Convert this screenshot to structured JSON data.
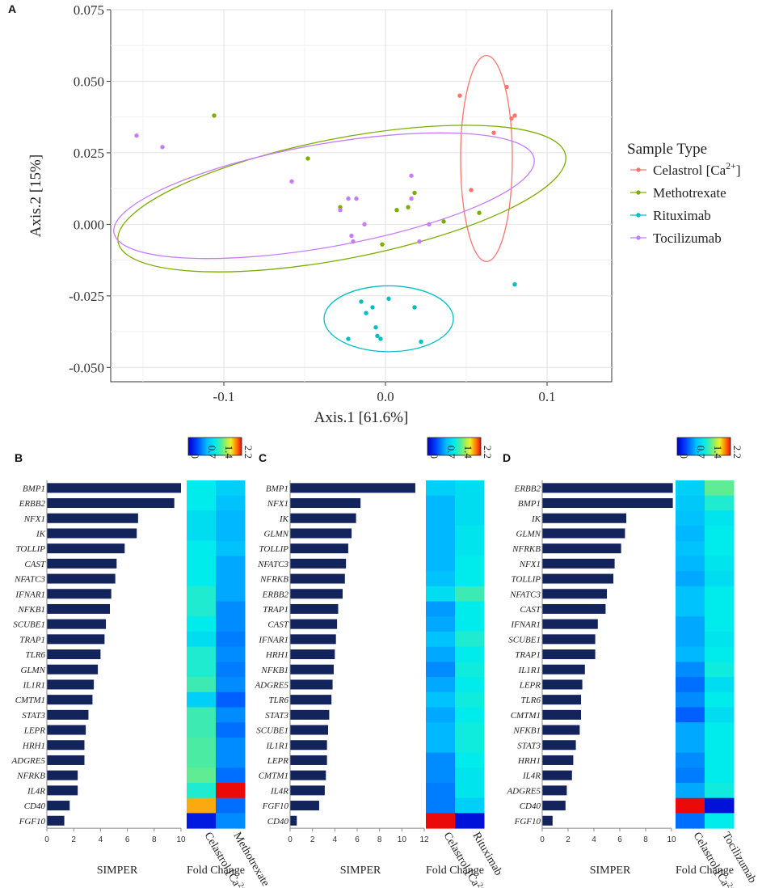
{
  "chart_data": [
    {
      "panel": "A",
      "type": "scatter",
      "xlabel": "Axis.1 [61.6%]",
      "ylabel": "Axis.2 [15%]",
      "xlim": [
        -0.17,
        0.14
      ],
      "ylim": [
        -0.055,
        0.075
      ],
      "xticks": [
        -0.1,
        0.0,
        0.1
      ],
      "xtick_labels": [
        "-0.1",
        "0.0",
        "0.1"
      ],
      "yticks": [
        0.075,
        0.05,
        0.025,
        0.0,
        -0.025,
        -0.05
      ],
      "ytick_labels": [
        "0.075",
        "0.050",
        "0.025",
        "0.000",
        "-0.025",
        "-0.050"
      ],
      "legend_title": "Sample Type",
      "legend_position": "right",
      "grid": true,
      "series": [
        {
          "name": "Celastrol [Ca2+]",
          "label_base": "Celastrol [Ca",
          "label_sup": "2+",
          "label_tail": "]",
          "color": "#f8766d",
          "points": [
            [
              0.046,
              0.045
            ],
            [
              0.075,
              0.048
            ],
            [
              0.08,
              0.038
            ],
            [
              0.078,
              0.037
            ],
            [
              0.067,
              0.032
            ],
            [
              0.053,
              0.012
            ]
          ],
          "ellipse": {
            "cx": 0.0625,
            "cy": 0.023,
            "rx": 0.016,
            "ry": 0.036,
            "angle_deg": 0
          }
        },
        {
          "name": "Methotrexate",
          "color": "#7cae00",
          "points": [
            [
              -0.106,
              0.038
            ],
            [
              -0.048,
              0.023
            ],
            [
              -0.028,
              0.006
            ],
            [
              0.018,
              0.011
            ],
            [
              0.014,
              0.006
            ],
            [
              0.007,
              0.005
            ],
            [
              0.036,
              0.001
            ],
            [
              -0.002,
              -0.007
            ],
            [
              0.058,
              0.004
            ]
          ],
          "ellipse": {
            "cx": -0.027,
            "cy": 0.009,
            "rx": 0.141,
            "ry": 0.021,
            "angle_deg": -11
          }
        },
        {
          "name": "Rituximab",
          "color": "#00bfc4",
          "points": [
            [
              -0.015,
              -0.027
            ],
            [
              -0.008,
              -0.029
            ],
            [
              0.002,
              -0.026
            ],
            [
              -0.012,
              -0.031
            ],
            [
              0.018,
              -0.029
            ],
            [
              -0.023,
              -0.04
            ],
            [
              -0.006,
              -0.036
            ],
            [
              -0.005,
              -0.039
            ],
            [
              -0.003,
              -0.04
            ],
            [
              0.022,
              -0.041
            ],
            [
              0.08,
              -0.021
            ]
          ],
          "ellipse": {
            "cx": 0.002,
            "cy": -0.033,
            "rx": 0.04,
            "ry": 0.0115,
            "angle_deg": 0
          }
        },
        {
          "name": "Tocilizumab",
          "color": "#c77cff",
          "points": [
            [
              -0.154,
              0.031
            ],
            [
              -0.138,
              0.027
            ],
            [
              -0.058,
              0.015
            ],
            [
              0.016,
              0.017
            ],
            [
              -0.023,
              0.009
            ],
            [
              -0.018,
              0.009
            ],
            [
              0.016,
              0.009
            ],
            [
              -0.028,
              0.005
            ],
            [
              -0.013,
              0.0
            ],
            [
              0.027,
              0.0
            ],
            [
              -0.021,
              -0.004
            ],
            [
              -0.02,
              -0.006
            ],
            [
              0.021,
              -0.006
            ]
          ],
          "ellipse": {
            "cx": -0.038,
            "cy": 0.01,
            "rx": 0.132,
            "ry": 0.018,
            "angle_deg": -10
          }
        }
      ]
    },
    {
      "panel": "B",
      "type": "bar",
      "orientation": "horizontal",
      "xlabel": "SIMPER",
      "xlim": [
        0,
        10
      ],
      "xticks": [
        0,
        2,
        4,
        6,
        8,
        10
      ],
      "categories": [
        "BMP1",
        "ERBB2",
        "NFX1",
        "IK",
        "TOLLIP",
        "CAST",
        "NFATC3",
        "IFNAR1",
        "NFKB1",
        "SCUBE1",
        "TRAP1",
        "TLR6",
        "GLMN",
        "IL1R1",
        "CMTM1",
        "STAT3",
        "LEPR",
        "HRH1",
        "ADGRE5",
        "NFRKB",
        "IL4R",
        "CD40",
        "FGF10"
      ],
      "values": [
        10.0,
        9.5,
        6.8,
        6.7,
        5.8,
        5.2,
        5.1,
        4.8,
        4.7,
        4.4,
        4.3,
        4.0,
        3.8,
        3.5,
        3.4,
        3.1,
        2.9,
        2.8,
        2.8,
        2.3,
        2.3,
        1.7,
        1.3
      ],
      "heatmap": {
        "title": "Fold Change",
        "colorbar_ticks": [
          "0",
          "0.7",
          "1.4",
          "2.2"
        ],
        "columns": [
          {
            "base": "Celastrol [Ca",
            "sup": "2+",
            "tail": "]"
          },
          {
            "base": "Methotrexate",
            "sup": "",
            "tail": ""
          }
        ],
        "values": [
          [
            1.1,
            0.9
          ],
          [
            1.1,
            0.8
          ],
          [
            1.0,
            0.75
          ],
          [
            1.0,
            0.75
          ],
          [
            1.1,
            0.8
          ],
          [
            1.1,
            0.7
          ],
          [
            1.1,
            0.7
          ],
          [
            1.2,
            0.7
          ],
          [
            1.2,
            0.6
          ],
          [
            1.1,
            0.6
          ],
          [
            1.0,
            0.55
          ],
          [
            1.2,
            0.6
          ],
          [
            1.2,
            0.55
          ],
          [
            1.3,
            0.6
          ],
          [
            0.9,
            0.45
          ],
          [
            1.3,
            0.6
          ],
          [
            1.3,
            0.5
          ],
          [
            1.35,
            0.6
          ],
          [
            1.35,
            0.6
          ],
          [
            1.4,
            0.5
          ],
          [
            1.2,
            2.2
          ],
          [
            1.9,
            0.5
          ],
          [
            0.15,
            0.6
          ]
        ]
      }
    },
    {
      "panel": "C",
      "type": "bar",
      "orientation": "horizontal",
      "xlabel": "SIMPER",
      "xlim": [
        0,
        12
      ],
      "xticks": [
        0,
        2,
        4,
        6,
        8,
        10,
        12
      ],
      "categories": [
        "BMP1",
        "NFX1",
        "IK",
        "GLMN",
        "TOLLIP",
        "NFATC3",
        "NFRKB",
        "ERBB2",
        "TRAP1",
        "CAST",
        "IFNAR1",
        "HRH1",
        "NFKB1",
        "ADGRE5",
        "TLR6",
        "STAT3",
        "SCUBE1",
        "IL1R1",
        "LEPR",
        "CMTM1",
        "IL4R",
        "FGF10",
        "CD40"
      ],
      "values": [
        11.2,
        6.3,
        5.9,
        5.5,
        5.2,
        5.0,
        4.9,
        4.7,
        4.3,
        4.2,
        4.1,
        4.0,
        3.9,
        3.8,
        3.7,
        3.5,
        3.4,
        3.3,
        3.3,
        3.2,
        3.1,
        2.6,
        0.6
      ],
      "heatmap": {
        "title": "Fold Change",
        "colorbar_ticks": [
          "0",
          "0.7",
          "1.4",
          "2.2"
        ],
        "columns": [
          {
            "base": "Celastrol [Ca",
            "sup": "2+",
            "tail": "]"
          },
          {
            "base": "Rituximab",
            "sup": "",
            "tail": ""
          }
        ],
        "values": [
          [
            0.9,
            1.0
          ],
          [
            0.75,
            1.0
          ],
          [
            0.75,
            1.0
          ],
          [
            0.75,
            1.05
          ],
          [
            0.75,
            1.05
          ],
          [
            0.75,
            1.1
          ],
          [
            0.8,
            1.1
          ],
          [
            1.0,
            1.3
          ],
          [
            0.65,
            1.1
          ],
          [
            0.7,
            1.1
          ],
          [
            0.8,
            1.2
          ],
          [
            0.7,
            1.1
          ],
          [
            0.6,
            1.15
          ],
          [
            0.7,
            1.1
          ],
          [
            0.8,
            1.15
          ],
          [
            0.7,
            1.1
          ],
          [
            0.75,
            1.15
          ],
          [
            0.75,
            1.15
          ],
          [
            0.6,
            1.1
          ],
          [
            0.6,
            1.05
          ],
          [
            0.55,
            1.05
          ],
          [
            0.55,
            0.9
          ],
          [
            2.2,
            0.1
          ]
        ]
      }
    },
    {
      "panel": "D",
      "type": "bar",
      "orientation": "horizontal",
      "xlabel": "SIMPER",
      "xlim": [
        0,
        10
      ],
      "xticks": [
        0,
        2,
        4,
        6,
        8,
        10
      ],
      "categories": [
        "ERBB2",
        "BMP1",
        "IK",
        "GLMN",
        "NFRKB",
        "NFX1",
        "TOLLIP",
        "NFATC3",
        "CAST",
        "IFNAR1",
        "SCUBE1",
        "TRAP1",
        "IL1R1",
        "LEPR",
        "TLR6",
        "CMTM1",
        "NFKB1",
        "STAT3",
        "HRH1",
        "IL4R",
        "ADGRE5",
        "CD40",
        "FGF10"
      ],
      "values": [
        10.1,
        10.1,
        6.5,
        6.4,
        6.1,
        5.6,
        5.5,
        5.0,
        4.9,
        4.3,
        4.1,
        4.1,
        3.3,
        3.1,
        3.0,
        3.0,
        2.9,
        2.6,
        2.4,
        2.3,
        1.9,
        1.8,
        0.8
      ],
      "heatmap": {
        "title": "Fold Change",
        "colorbar_ticks": [
          "0",
          "0.7",
          "1.4",
          "2.2"
        ],
        "columns": [
          {
            "base": "Celastrol [Ca",
            "sup": "2+",
            "tail": "]"
          },
          {
            "base": "Tocilizumab",
            "sup": "",
            "tail": ""
          }
        ],
        "values": [
          [
            0.9,
            1.4
          ],
          [
            0.85,
            1.2
          ],
          [
            0.8,
            1.05
          ],
          [
            0.75,
            1.1
          ],
          [
            0.8,
            1.1
          ],
          [
            0.75,
            1.05
          ],
          [
            0.7,
            1.0
          ],
          [
            0.8,
            1.1
          ],
          [
            0.8,
            1.1
          ],
          [
            0.7,
            1.1
          ],
          [
            0.7,
            1.05
          ],
          [
            0.75,
            1.1
          ],
          [
            0.6,
            1.15
          ],
          [
            0.5,
            1.0
          ],
          [
            0.6,
            1.1
          ],
          [
            0.45,
            1.0
          ],
          [
            0.7,
            1.1
          ],
          [
            0.7,
            1.1
          ],
          [
            0.6,
            1.1
          ],
          [
            0.55,
            1.1
          ],
          [
            0.7,
            1.15
          ],
          [
            2.2,
            0.1
          ],
          [
            0.5,
            1.1
          ]
        ]
      }
    }
  ]
}
